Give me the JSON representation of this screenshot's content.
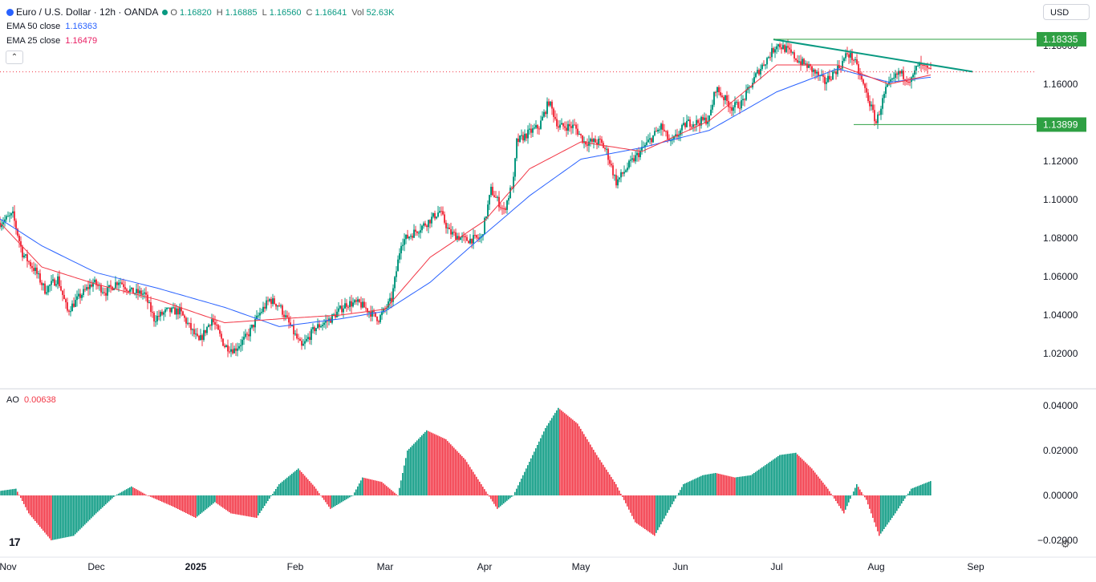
{
  "header": {
    "symbol_title": "Euro / U.S. Dollar · 12h · OANDA",
    "o_label": "O",
    "o_value": "1.16820",
    "h_label": "H",
    "h_value": "1.16885",
    "l_label": "L",
    "l_value": "1.16560",
    "c_label": "C",
    "c_value": "1.16641",
    "vol_label": "Vol",
    "vol_value": "52.63K",
    "currency": "USD",
    "collapse_glyph": "⌃"
  },
  "indicators": {
    "ema50_label": "EMA 50 close",
    "ema50_value": "1.16363",
    "ema25_label": "EMA 25 close",
    "ema25_value": "1.16479",
    "ao_label": "AO",
    "ao_value": "0.00638"
  },
  "colors": {
    "up": "#089981",
    "down": "#f23645",
    "ema50": "#2962ff",
    "ema25": "#f23645",
    "trendline": "#089981",
    "level": "#2ea043"
  },
  "icons": {
    "logo": "tradingview-logo",
    "settings": "gear-icon"
  },
  "chart_data": [
    {
      "type": "candlestick",
      "title": "Euro / U.S. Dollar · 12h · OANDA",
      "ylim": [
        1.0,
        1.19
      ],
      "y_ticks": [
        "1.18000",
        "1.16000",
        "1.12000",
        "1.10000",
        "1.08000",
        "1.06000",
        "1.04000",
        "1.02000"
      ],
      "x_ticks": [
        "Nov",
        "Dec",
        "2025",
        "Feb",
        "Mar",
        "Apr",
        "May",
        "Jun",
        "Jul",
        "Aug",
        "Sep"
      ],
      "close_anchors": [
        [
          "2024-11-01",
          1.088
        ],
        [
          "2024-11-05",
          1.092
        ],
        [
          "2024-11-08",
          1.072
        ],
        [
          "2024-11-12",
          1.063
        ],
        [
          "2024-11-15",
          1.053
        ],
        [
          "2024-11-19",
          1.059
        ],
        [
          "2024-11-22",
          1.042
        ],
        [
          "2024-11-26",
          1.05
        ],
        [
          "2024-11-30",
          1.057
        ],
        [
          "2024-12-04",
          1.052
        ],
        [
          "2024-12-08",
          1.058
        ],
        [
          "2024-12-12",
          1.052
        ],
        [
          "2024-12-16",
          1.051
        ],
        [
          "2024-12-19",
          1.038
        ],
        [
          "2024-12-23",
          1.042
        ],
        [
          "2024-12-27",
          1.042
        ],
        [
          "2025-01-02",
          1.026
        ],
        [
          "2025-01-06",
          1.038
        ],
        [
          "2025-01-10",
          1.024
        ],
        [
          "2025-01-13",
          1.022
        ],
        [
          "2025-01-17",
          1.029
        ],
        [
          "2025-01-21",
          1.041
        ],
        [
          "2025-01-24",
          1.048
        ],
        [
          "2025-01-27",
          1.045
        ],
        [
          "2025-02-03",
          1.023
        ],
        [
          "2025-02-07",
          1.033
        ],
        [
          "2025-02-12",
          1.038
        ],
        [
          "2025-02-17",
          1.046
        ],
        [
          "2025-02-21",
          1.046
        ],
        [
          "2025-02-27",
          1.038
        ],
        [
          "2025-03-03",
          1.048
        ],
        [
          "2025-03-06",
          1.078
        ],
        [
          "2025-03-10",
          1.083
        ],
        [
          "2025-03-14",
          1.088
        ],
        [
          "2025-03-18",
          1.094
        ],
        [
          "2025-03-21",
          1.083
        ],
        [
          "2025-03-26",
          1.079
        ],
        [
          "2025-03-31",
          1.08
        ],
        [
          "2025-04-03",
          1.105
        ],
        [
          "2025-04-07",
          1.094
        ],
        [
          "2025-04-10",
          1.11
        ],
        [
          "2025-04-11",
          1.13
        ],
        [
          "2025-04-15",
          1.135
        ],
        [
          "2025-04-18",
          1.138
        ],
        [
          "2025-04-21",
          1.151
        ],
        [
          "2025-04-24",
          1.138
        ],
        [
          "2025-04-29",
          1.138
        ],
        [
          "2025-05-02",
          1.13
        ],
        [
          "2025-05-07",
          1.13
        ],
        [
          "2025-05-09",
          1.125
        ],
        [
          "2025-05-12",
          1.109
        ],
        [
          "2025-05-16",
          1.118
        ],
        [
          "2025-05-20",
          1.126
        ],
        [
          "2025-05-26",
          1.138
        ],
        [
          "2025-05-29",
          1.129
        ],
        [
          "2025-06-03",
          1.14
        ],
        [
          "2025-06-06",
          1.14
        ],
        [
          "2025-06-10",
          1.142
        ],
        [
          "2025-06-12",
          1.158
        ],
        [
          "2025-06-17",
          1.148
        ],
        [
          "2025-06-20",
          1.15
        ],
        [
          "2025-06-25",
          1.166
        ],
        [
          "2025-06-30",
          1.178
        ],
        [
          "2025-07-01",
          1.181
        ],
        [
          "2025-07-04",
          1.178
        ],
        [
          "2025-07-08",
          1.172
        ],
        [
          "2025-07-11",
          1.169
        ],
        [
          "2025-07-16",
          1.161
        ],
        [
          "2025-07-21",
          1.17
        ],
        [
          "2025-07-23",
          1.176
        ],
        [
          "2025-07-25",
          1.173
        ],
        [
          "2025-07-29",
          1.155
        ],
        [
          "2025-08-01",
          1.14
        ],
        [
          "2025-08-04",
          1.157
        ],
        [
          "2025-08-08",
          1.166
        ],
        [
          "2025-08-12",
          1.162
        ],
        [
          "2025-08-14",
          1.17
        ],
        [
          "2025-08-18",
          1.1664
        ]
      ],
      "ema50_anchors": [
        [
          "2024-11-01",
          1.09
        ],
        [
          "2024-11-14",
          1.076
        ],
        [
          "2024-12-01",
          1.062
        ],
        [
          "2024-12-20",
          1.054
        ],
        [
          "2025-01-10",
          1.044
        ],
        [
          "2025-01-27",
          1.034
        ],
        [
          "2025-02-15",
          1.038
        ],
        [
          "2025-03-01",
          1.042
        ],
        [
          "2025-03-15",
          1.057
        ],
        [
          "2025-04-01",
          1.082
        ],
        [
          "2025-04-15",
          1.102
        ],
        [
          "2025-05-01",
          1.121
        ],
        [
          "2025-05-20",
          1.127
        ],
        [
          "2025-06-10",
          1.136
        ],
        [
          "2025-07-01",
          1.156
        ],
        [
          "2025-07-20",
          1.168
        ],
        [
          "2025-08-05",
          1.161
        ],
        [
          "2025-08-18",
          1.1636
        ]
      ],
      "ema25_anchors": [
        [
          "2024-11-01",
          1.088
        ],
        [
          "2024-11-14",
          1.065
        ],
        [
          "2024-12-01",
          1.056
        ],
        [
          "2024-12-20",
          1.048
        ],
        [
          "2025-01-10",
          1.036
        ],
        [
          "2025-01-27",
          1.038
        ],
        [
          "2025-02-15",
          1.04
        ],
        [
          "2025-03-01",
          1.043
        ],
        [
          "2025-03-15",
          1.07
        ],
        [
          "2025-04-01",
          1.089
        ],
        [
          "2025-04-15",
          1.116
        ],
        [
          "2025-05-01",
          1.13
        ],
        [
          "2025-05-20",
          1.125
        ],
        [
          "2025-06-10",
          1.141
        ],
        [
          "2025-07-01",
          1.17
        ],
        [
          "2025-07-20",
          1.17
        ],
        [
          "2025-08-05",
          1.16
        ],
        [
          "2025-08-18",
          1.1648
        ]
      ],
      "annotations": {
        "trendline": {
          "from": [
            "2025-06-30",
            1.1833
          ],
          "to": [
            "2025-08-31",
            1.1665
          ]
        },
        "resistance": {
          "value": 1.18335,
          "label": "1.18335",
          "from": "2025-06-30"
        },
        "support": {
          "value": 1.13899,
          "label": "1.13899",
          "from": "2025-07-25"
        }
      }
    },
    {
      "type": "bar",
      "title": "AO",
      "ylim": [
        -0.025,
        0.045
      ],
      "y_ticks": [
        "0.04000",
        "0.02000",
        "0.00000",
        "−0.02000"
      ],
      "ao_anchors": [
        [
          "2024-11-01",
          0.002
        ],
        [
          "2024-11-06",
          0.003
        ],
        [
          "2024-11-10",
          -0.008
        ],
        [
          "2024-11-17",
          -0.02
        ],
        [
          "2024-11-24",
          -0.018
        ],
        [
          "2024-12-01",
          -0.008
        ],
        [
          "2024-12-07",
          0.0
        ],
        [
          "2024-12-12",
          0.004
        ],
        [
          "2024-12-17",
          0.0
        ],
        [
          "2024-12-25",
          -0.005
        ],
        [
          "2025-01-01",
          -0.01
        ],
        [
          "2025-01-07",
          -0.003
        ],
        [
          "2025-01-12",
          -0.008
        ],
        [
          "2025-01-20",
          -0.01
        ],
        [
          "2025-01-27",
          0.005
        ],
        [
          "2025-02-02",
          0.012
        ],
        [
          "2025-02-07",
          0.004
        ],
        [
          "2025-02-12",
          -0.006
        ],
        [
          "2025-02-19",
          0.0
        ],
        [
          "2025-02-22",
          0.008
        ],
        [
          "2025-02-28",
          0.006
        ],
        [
          "2025-03-05",
          0.0
        ],
        [
          "2025-03-08",
          0.02
        ],
        [
          "2025-03-14",
          0.029
        ],
        [
          "2025-03-20",
          0.025
        ],
        [
          "2025-03-26",
          0.016
        ],
        [
          "2025-03-31",
          0.005
        ],
        [
          "2025-04-05",
          -0.006
        ],
        [
          "2025-04-10",
          0.0
        ],
        [
          "2025-04-15",
          0.015
        ],
        [
          "2025-04-20",
          0.03
        ],
        [
          "2025-04-24",
          0.039
        ],
        [
          "2025-04-30",
          0.032
        ],
        [
          "2025-05-06",
          0.018
        ],
        [
          "2025-05-12",
          0.005
        ],
        [
          "2025-05-18",
          -0.012
        ],
        [
          "2025-05-24",
          -0.018
        ],
        [
          "2025-06-02",
          0.005
        ],
        [
          "2025-06-08",
          0.009
        ],
        [
          "2025-06-12",
          0.01
        ],
        [
          "2025-06-18",
          0.008
        ],
        [
          "2025-06-23",
          0.009
        ],
        [
          "2025-06-28",
          0.014
        ],
        [
          "2025-07-02",
          0.018
        ],
        [
          "2025-07-07",
          0.019
        ],
        [
          "2025-07-12",
          0.012
        ],
        [
          "2025-07-17",
          0.003
        ],
        [
          "2025-07-22",
          -0.008
        ],
        [
          "2025-07-26",
          0.005
        ],
        [
          "2025-07-29",
          -0.002
        ],
        [
          "2025-08-02",
          -0.018
        ],
        [
          "2025-08-07",
          -0.008
        ],
        [
          "2025-08-12",
          0.003
        ],
        [
          "2025-08-18",
          0.0064
        ]
      ]
    }
  ]
}
